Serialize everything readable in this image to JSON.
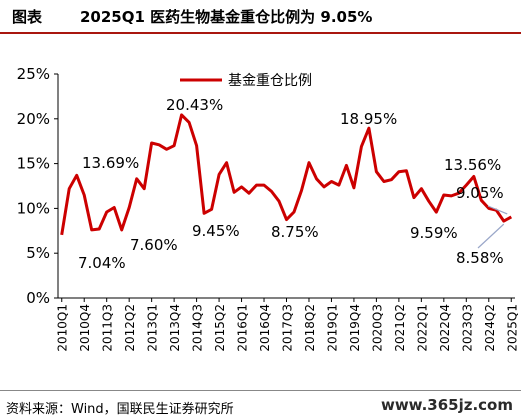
{
  "header": {
    "label": "图表",
    "title": "2025Q1 医药生物基金重仓比例为 9.05%"
  },
  "footer": {
    "source": "资料来源：Wind，国联民生证券研究所",
    "watermark": "www.365jz.com"
  },
  "colors": {
    "line": "#cc0000",
    "accent": "#a9160f",
    "callout": "#9aa7c9"
  },
  "chart_data": {
    "type": "line",
    "title": "",
    "xlabel": "",
    "ylabel": "",
    "ylim": [
      0,
      25
    ],
    "yticks": [
      "0%",
      "5%",
      "10%",
      "15%",
      "20%",
      "25%"
    ],
    "grid": false,
    "legend_position": "top-left",
    "x": [
      "2010Q1",
      "2010Q2",
      "2010Q3",
      "2010Q4",
      "2011Q1",
      "2011Q2",
      "2011Q3",
      "2011Q4",
      "2012Q1",
      "2012Q2",
      "2012Q3",
      "2012Q4",
      "2013Q1",
      "2013Q2",
      "2013Q3",
      "2013Q4",
      "2014Q1",
      "2014Q2",
      "2014Q3",
      "2014Q4",
      "2015Q1",
      "2015Q2",
      "2015Q3",
      "2015Q4",
      "2016Q1",
      "2016Q2",
      "2016Q3",
      "2016Q4",
      "2017Q1",
      "2017Q2",
      "2017Q3",
      "2017Q4",
      "2018Q1",
      "2018Q2",
      "2018Q3",
      "2018Q4",
      "2019Q1",
      "2019Q2",
      "2019Q3",
      "2019Q4",
      "2020Q1",
      "2020Q2",
      "2020Q3",
      "2020Q4",
      "2021Q1",
      "2021Q2",
      "2021Q3",
      "2021Q4",
      "2022Q1",
      "2022Q2",
      "2022Q3",
      "2022Q4",
      "2023Q1",
      "2023Q2",
      "2023Q3",
      "2023Q4",
      "2024Q1",
      "2024Q2",
      "2024Q3",
      "2024Q4",
      "2025Q1"
    ],
    "xtick_labels": [
      "2010Q1",
      "2010Q4",
      "2011Q3",
      "2012Q2",
      "2013Q1",
      "2013Q4",
      "2014Q3",
      "2015Q2",
      "2016Q1",
      "2016Q4",
      "2017Q3",
      "2018Q2",
      "2019Q1",
      "2019Q4",
      "2020Q3",
      "2021Q2",
      "2022Q1",
      "2022Q4",
      "2023Q3",
      "2024Q2",
      "2025Q1"
    ],
    "series": [
      {
        "name": "基金重仓比例",
        "values": [
          7.04,
          12.2,
          13.69,
          11.5,
          7.6,
          7.7,
          9.6,
          10.1,
          7.6,
          10.1,
          13.3,
          12.2,
          17.3,
          17.1,
          16.6,
          17.0,
          20.43,
          19.6,
          17.0,
          9.45,
          9.9,
          13.8,
          15.1,
          11.8,
          12.4,
          11.7,
          12.6,
          12.6,
          11.9,
          10.8,
          8.75,
          9.6,
          12.0,
          15.1,
          13.3,
          12.4,
          13.0,
          12.6,
          14.8,
          12.3,
          16.9,
          18.95,
          14.1,
          13.0,
          13.2,
          14.1,
          14.2,
          11.2,
          12.2,
          10.8,
          9.59,
          11.5,
          11.4,
          11.7,
          12.6,
          13.56,
          10.9,
          10.0,
          9.8,
          8.58,
          9.05
        ]
      }
    ],
    "annotations": [
      {
        "text": "13.69%",
        "x": "2010Q3"
      },
      {
        "text": "7.04%",
        "x": "2010Q1"
      },
      {
        "text": "7.60%",
        "x": "2011Q1"
      },
      {
        "text": "20.43%",
        "x": "2014Q1"
      },
      {
        "text": "9.45%",
        "x": "2014Q4"
      },
      {
        "text": "8.75%",
        "x": "2017Q3"
      },
      {
        "text": "18.95%",
        "x": "2020Q2"
      },
      {
        "text": "9.59%",
        "x": "2022Q3"
      },
      {
        "text": "13.56%",
        "x": "2023Q4"
      },
      {
        "text": "9.05%",
        "x": "2025Q1"
      },
      {
        "text": "8.58%",
        "x": "2024Q4"
      }
    ]
  }
}
